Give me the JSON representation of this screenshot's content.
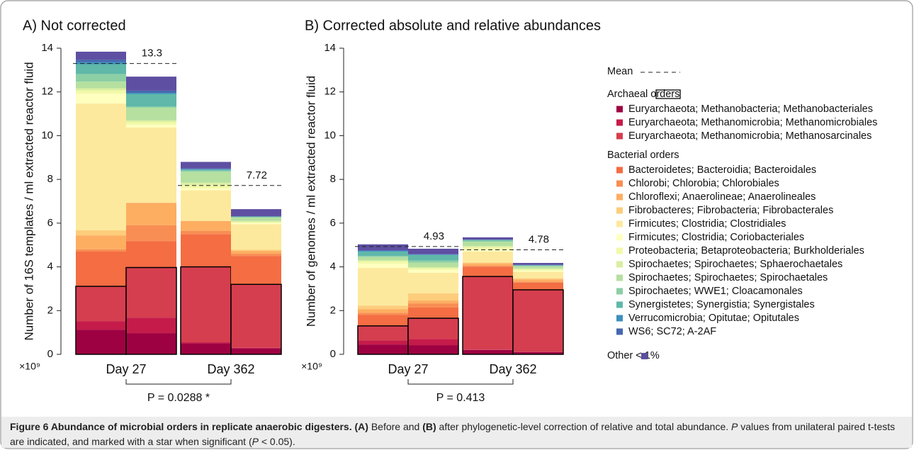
{
  "chart_data": {
    "type": "stacked-bar",
    "mean_label": "Mean",
    "series": [
      {
        "name": "Euryarchaeota; Methanobacteria; Methanobacteriales",
        "color": "#9e0142",
        "group": "Archaeal orders"
      },
      {
        "name": "Euryarchaeota; Methanomicrobia; Methanomicrobiales",
        "color": "#c51b4a",
        "group": "Archaeal orders"
      },
      {
        "name": "Euryarchaeota; Methanomicrobia; Methanosarcinales",
        "color": "#d53e4f",
        "group": "Archaeal orders"
      },
      {
        "name": "Bacteroidetes; Bacteroidia; Bacteroidales",
        "color": "#f46d43",
        "group": "Bacterial orders"
      },
      {
        "name": "Chlorobi; Chlorobia; Chlorobiales",
        "color": "#f88e53",
        "group": "Bacterial orders"
      },
      {
        "name": "Chloroflexi; Anaerolineae; Anaerolineales",
        "color": "#fdae61",
        "group": "Bacterial orders"
      },
      {
        "name": "Fibrobacteres; Fibrobacteria; Fibrobacterales",
        "color": "#fdcd7c",
        "group": "Bacterial orders"
      },
      {
        "name": "Firmicutes; Clostridia; Clostridiales",
        "color": "#fde99d",
        "group": "Bacterial orders"
      },
      {
        "name": "Firmicutes; Clostridia; Coriobacteriales",
        "color": "#ffffc0",
        "group": "Bacterial orders"
      },
      {
        "name": "Proteobacteria; Betaproteobacteria; Burkholderiales",
        "color": "#f2f9a8",
        "group": "Bacterial orders"
      },
      {
        "name": "Spirochaetes; Spirochaetes; Sphaerochaetales",
        "color": "#d9efa0",
        "group": "Bacterial orders"
      },
      {
        "name": "Spirochaetes; Spirochaetes; Spirochaetales",
        "color": "#b5e0a0",
        "group": "Bacterial orders"
      },
      {
        "name": "Spirochaetes; WWE1; Cloacamonales",
        "color": "#8ccfa5",
        "group": "Bacterial orders"
      },
      {
        "name": "Synergistetes; Synergistia; Synergistales",
        "color": "#5fb8a9",
        "group": "Bacterial orders"
      },
      {
        "name": "Verrucomicrobia; Opitutae; Opitutales",
        "color": "#3d8fbf",
        "group": "Bacterial orders"
      },
      {
        "name": "WS6; SC72; A-2AF",
        "color": "#4467ae",
        "group": "Bacterial orders"
      },
      {
        "name": "Other < 1%",
        "color": "#5e4fa2"
      }
    ],
    "panels": [
      {
        "title": "A) Not corrected",
        "ylabel": "Number of 16S templates / ml extracted reactor fluid",
        "scale_label": "×10⁹",
        "ylim": [
          0,
          14
        ],
        "yticks": [
          0,
          2,
          4,
          6,
          8,
          10,
          12,
          14
        ],
        "categories": [
          "Day 27",
          "Day 362"
        ],
        "means": [
          13.3,
          7.72
        ],
        "p_label": "P = 0.0288 *",
        "values": [
          [
            [
              1.13,
              0.39,
              1.59,
              1.59,
              0.1,
              0.64,
              0.23,
              5.8,
              0.45,
              0.15,
              0.1,
              0.3,
              0.35,
              0.45,
              0.1,
              0.1,
              0.37
            ],
            [
              0.97,
              0.71,
              2.29,
              1.21,
              0.72,
              1.03,
              0,
              3.44,
              0.13,
              0.13,
              0.07,
              0.58,
              0.05,
              0.58,
              0.05,
              0.1,
              0.64
            ]
          ],
          [
            [
              0.5,
              0.05,
              3.45,
              1.5,
              0.15,
              0.45,
              0,
              1.4,
              0.1,
              0.15,
              0.1,
              0.5,
              0.05,
              0.05,
              0.02,
              0.03,
              0.3
            ],
            [
              0.28,
              0.02,
              2.9,
              1.3,
              0.1,
              0.13,
              0.05,
              1.17,
              0.05,
              0.05,
              0.05,
              0.15,
              0.05,
              0,
              0,
              0.02,
              0.32
            ]
          ]
        ]
      },
      {
        "title": "B) Corrected absolute and relative abundances",
        "ylabel": "Number of genomes / ml extracted reactor fluid",
        "scale_label": "×10⁹",
        "ylim": [
          0,
          14
        ],
        "yticks": [
          0,
          2,
          4,
          6,
          8,
          10,
          12,
          14
        ],
        "categories": [
          "Day 27",
          "Day 362"
        ],
        "means": [
          4.93,
          4.78
        ],
        "p_label": "P = 0.413",
        "values": [
          [
            [
              0.45,
              0.18,
              0.67,
              0.5,
              0.1,
              0.17,
              0.16,
              1.72,
              0.2,
              0.1,
              0.05,
              0.15,
              0.05,
              0.2,
              0.03,
              0.03,
              0.27
            ],
            [
              0.42,
              0.28,
              0.95,
              0.49,
              0.19,
              0.13,
              0.33,
              0.94,
              0.13,
              0.08,
              0.05,
              0.2,
              0.1,
              0.25,
              0.02,
              0.02,
              0.25
            ]
          ],
          [
            [
              0.2,
              0.02,
              3.34,
              0.44,
              0.06,
              0.1,
              0.04,
              0.5,
              0.1,
              0.1,
              0.05,
              0.2,
              0.05,
              0.03,
              0.01,
              0.01,
              0.1
            ],
            [
              0.1,
              0.02,
              2.83,
              0.33,
              0.05,
              0.1,
              0.05,
              0.3,
              0.05,
              0.05,
              0.05,
              0.1,
              0.02,
              0.02,
              0.01,
              0.01,
              0.09
            ]
          ]
        ]
      }
    ]
  },
  "caption": [
    {
      "text": "Figure 6 Abundance of microbial orders in replicate anaerobic digesters. ",
      "style": "bold"
    },
    {
      "text": "(A)",
      "style": "bold"
    },
    {
      "text": " Before and ",
      "style": "normal"
    },
    {
      "text": "(B)",
      "style": "bold"
    },
    {
      "text": " after phylogenetic-level correction of relative and total abundance. ",
      "style": "normal"
    },
    {
      "text": "P",
      "style": "italic"
    },
    {
      "text": " values from unilateral paired t-tests are indicated, and marked with a star when significant (",
      "style": "normal"
    },
    {
      "text": "P",
      "style": "italic"
    },
    {
      "text": " < 0.05).",
      "style": "normal"
    }
  ]
}
